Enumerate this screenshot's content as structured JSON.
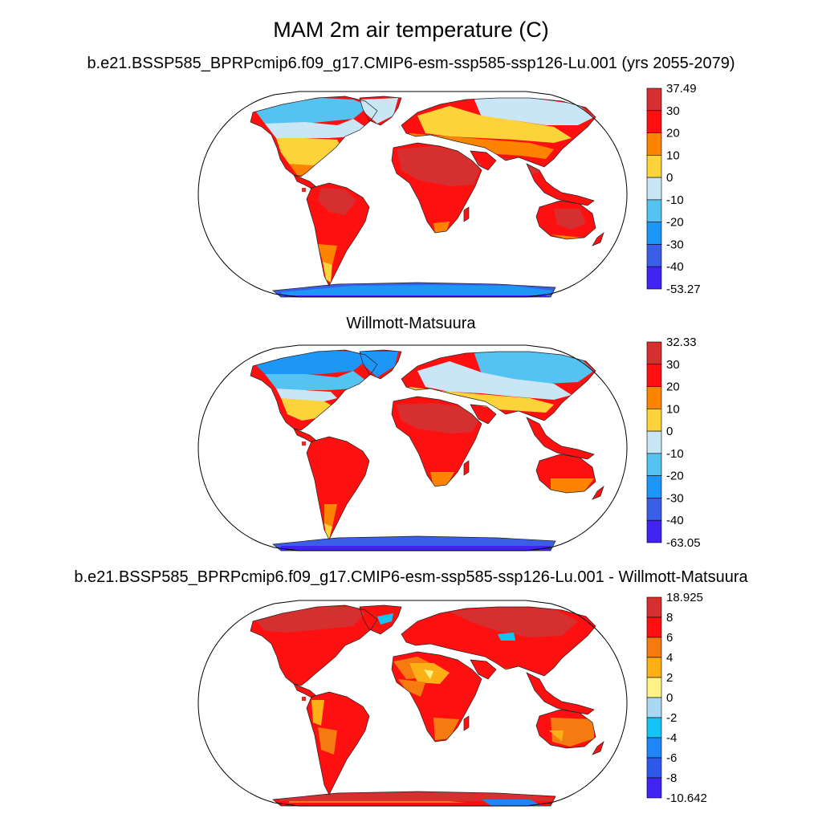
{
  "title": "MAM 2m air temperature (C)",
  "panels": [
    {
      "subtitle": "b.e21.BSSP585_BPRPcmip6.f09_g17.CMIP6-esm-ssp585-ssp126-Lu.001 (yrs 2055-2079)",
      "colorbar": {
        "labels": [
          "37.49",
          "30",
          "20",
          "10",
          "0",
          "-10",
          "-20",
          "-30",
          "-40",
          "-53.27"
        ],
        "colors": [
          "#d62f2f",
          "#fe1010",
          "#fe8300",
          "#fdd33a",
          "#c8e6f5",
          "#54c3f2",
          "#1c96f7",
          "#3b5ee8",
          "#4224f2"
        ]
      }
    },
    {
      "subtitle": "Willmott-Matsuura",
      "colorbar": {
        "labels": [
          "32.33",
          "30",
          "20",
          "10",
          "0",
          "-10",
          "-20",
          "-30",
          "-40",
          "-63.05"
        ],
        "colors": [
          "#d62f2f",
          "#fe1010",
          "#fe8300",
          "#fdd33a",
          "#c8e6f5",
          "#54c3f2",
          "#1c96f7",
          "#3b5ee8",
          "#4224f2"
        ]
      }
    },
    {
      "subtitle": "b.e21.BSSP585_BPRPcmip6.f09_g17.CMIP6-esm-ssp585-ssp126-Lu.001 - Willmott-Matsuura",
      "colorbar": {
        "labels": [
          "18.925",
          "8",
          "6",
          "4",
          "2",
          "0",
          "-2",
          "-4",
          "-6",
          "-8",
          "-10.642"
        ],
        "colors": [
          "#d62f2f",
          "#fe1010",
          "#f57a10",
          "#fdb015",
          "#fdf283",
          "#a8d8f3",
          "#14c4f6",
          "#1e86f5",
          "#2e58ea",
          "#4224f2"
        ]
      }
    }
  ]
}
